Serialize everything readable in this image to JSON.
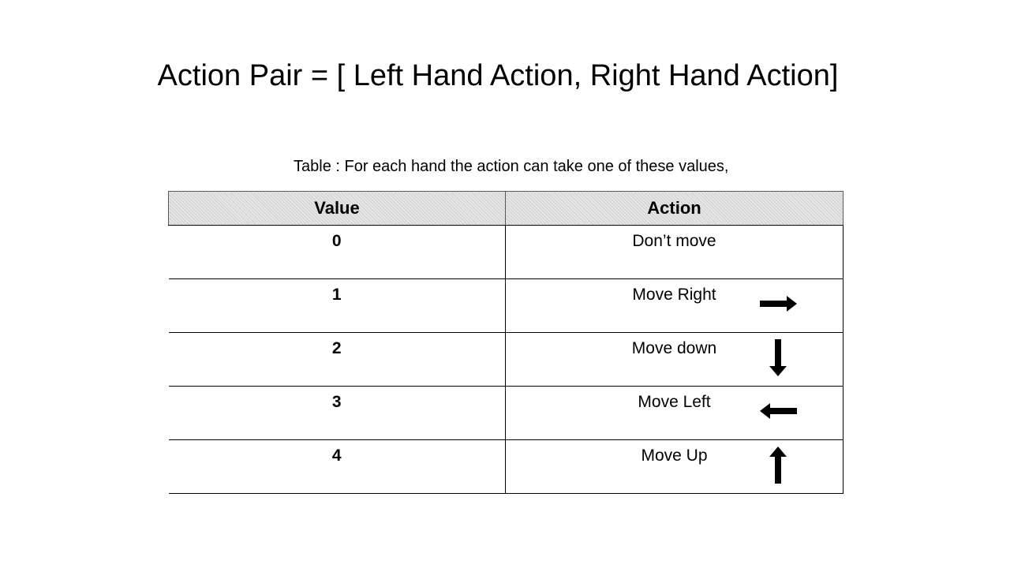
{
  "title": "Action Pair = [ Left Hand Action, Right Hand Action]",
  "caption": "Table : For each hand the action can take one of these values,",
  "table": {
    "headers": [
      "Value",
      "Action"
    ],
    "rows": [
      {
        "value": "0",
        "action": "Don’t move",
        "icon": ""
      },
      {
        "value": "1",
        "action": "Move Right",
        "icon": "arrow-right-icon"
      },
      {
        "value": "2",
        "action": "Move down",
        "icon": "arrow-down-icon"
      },
      {
        "value": "3",
        "action": "Move Left",
        "icon": "arrow-left-icon"
      },
      {
        "value": "4",
        "action": "Move Up",
        "icon": "arrow-up-icon"
      }
    ]
  },
  "colors": {
    "header_fill": "#d9d9d9",
    "arrow": "#000000",
    "border": "#000000"
  }
}
